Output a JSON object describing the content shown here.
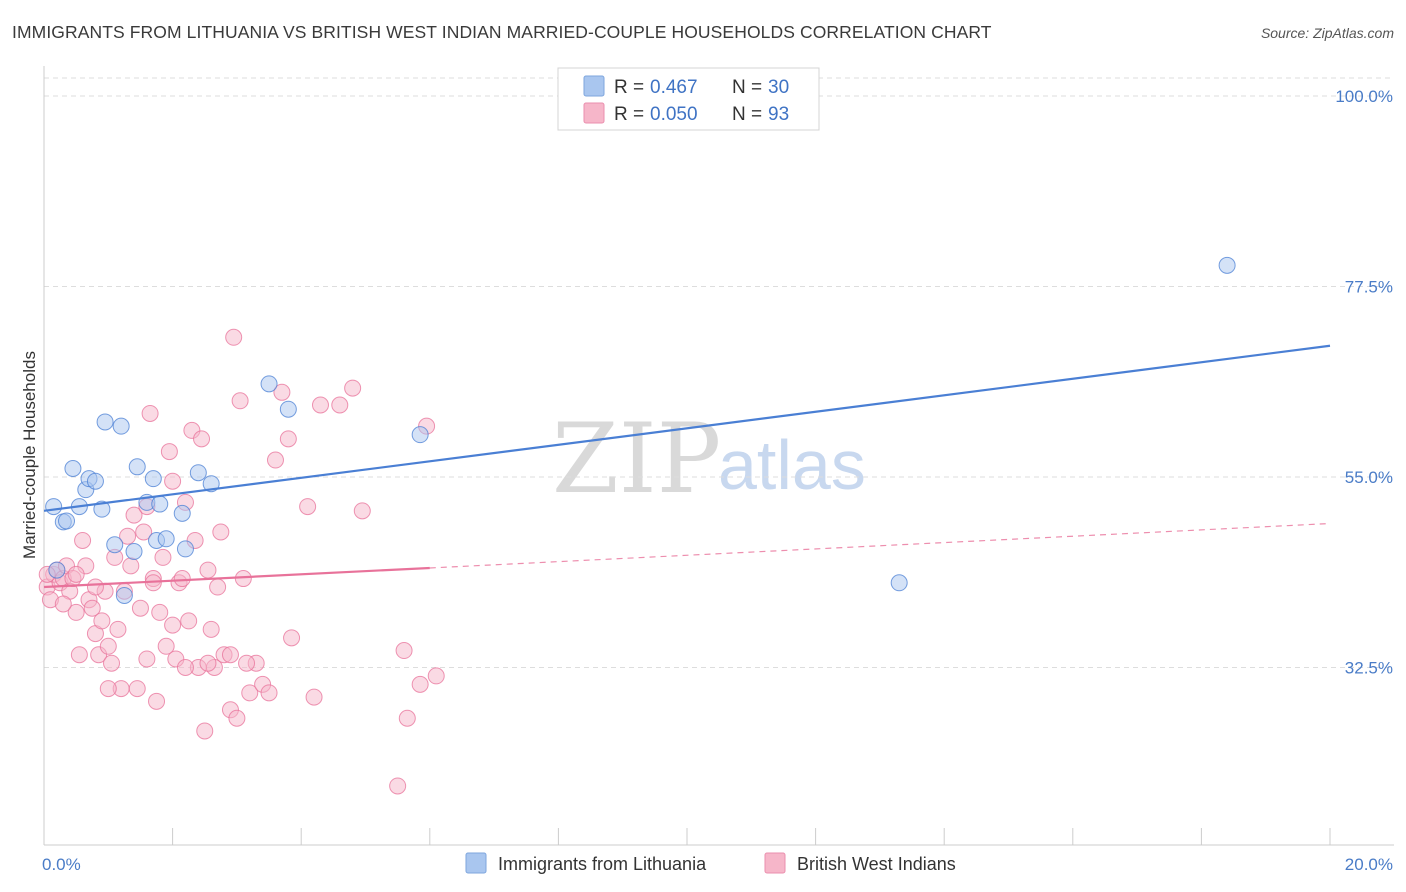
{
  "title": "IMMIGRANTS FROM LITHUANIA VS BRITISH WEST INDIAN MARRIED-COUPLE HOUSEHOLDS CORRELATION CHART",
  "source": "Source: ZipAtlas.com",
  "watermark": {
    "zip": "ZIP",
    "atlas": "atlas"
  },
  "colors": {
    "blue": "#4a7fd4",
    "blue_fill": "#a9c6ef",
    "pink": "#e8729a",
    "pink_fill": "#f6b6c9",
    "grid": "#dddddd",
    "tick_label": "#4a7cc7"
  },
  "legend": {
    "rows": [
      {
        "r_label": "R = ",
        "r_value": "0.467",
        "n_label": "N = ",
        "n_value": "30"
      },
      {
        "r_label": "R = ",
        "r_value": "0.050",
        "n_label": "N = ",
        "n_value": "93"
      }
    ]
  },
  "chart_data": {
    "type": "scatter",
    "title": "IMMIGRANTS FROM LITHUANIA VS BRITISH WEST INDIAN MARRIED-COUPLE HOUSEHOLDS CORRELATION CHART",
    "xlabel": "",
    "ylabel": "Married-couple Households",
    "xlim": [
      0,
      20
    ],
    "ylim": [
      12,
      102
    ],
    "x_tick_labels": {
      "left": "0.0%",
      "right": "20.0%"
    },
    "y_ticks": [
      {
        "value": 100,
        "label": "100.0%"
      },
      {
        "value": 77.5,
        "label": "77.5%"
      },
      {
        "value": 55,
        "label": "55.0%"
      },
      {
        "value": 32.5,
        "label": "32.5%"
      }
    ],
    "grid": true,
    "legend_position": "top-center",
    "series": [
      {
        "name": "Immigrants from Lithuania",
        "color": "blue",
        "trend": {
          "x0": 0.0,
          "y0": 51.0,
          "x1": 20.0,
          "y1": 70.5,
          "dashed_from": null
        },
        "points": [
          [
            0.15,
            51.5
          ],
          [
            0.3,
            49.7
          ],
          [
            0.35,
            49.8
          ],
          [
            0.45,
            56.0
          ],
          [
            0.55,
            51.5
          ],
          [
            0.65,
            53.5
          ],
          [
            0.7,
            54.8
          ],
          [
            0.8,
            54.5
          ],
          [
            0.9,
            51.2
          ],
          [
            0.95,
            61.5
          ],
          [
            1.1,
            47.0
          ],
          [
            1.2,
            61.0
          ],
          [
            1.4,
            46.2
          ],
          [
            1.45,
            56.2
          ],
          [
            1.6,
            52.0
          ],
          [
            1.7,
            54.8
          ],
          [
            1.75,
            47.5
          ],
          [
            1.8,
            51.8
          ],
          [
            1.9,
            47.7
          ],
          [
            2.15,
            50.7
          ],
          [
            2.2,
            46.5
          ],
          [
            2.4,
            55.5
          ],
          [
            2.6,
            54.2
          ],
          [
            3.5,
            66.0
          ],
          [
            3.8,
            63.0
          ],
          [
            5.85,
            60.0
          ],
          [
            18.4,
            80.0
          ],
          [
            13.3,
            42.5
          ],
          [
            1.25,
            41.0
          ],
          [
            0.2,
            44.0
          ]
        ]
      },
      {
        "name": "British West Indians",
        "color": "pink",
        "trend": {
          "x0": 0.0,
          "y0": 42.0,
          "x1": 20.0,
          "y1": 49.5,
          "dashed_from": 6.0
        },
        "points": [
          [
            0.05,
            42.0
          ],
          [
            0.1,
            40.5
          ],
          [
            0.15,
            43.5
          ],
          [
            0.2,
            44.0
          ],
          [
            0.25,
            42.5
          ],
          [
            0.3,
            43.0
          ],
          [
            0.35,
            44.5
          ],
          [
            0.4,
            41.5
          ],
          [
            0.45,
            43.0
          ],
          [
            0.5,
            39.0
          ],
          [
            0.55,
            34.0
          ],
          [
            0.6,
            47.5
          ],
          [
            0.65,
            44.5
          ],
          [
            0.7,
            40.5
          ],
          [
            0.75,
            39.5
          ],
          [
            0.8,
            36.5
          ],
          [
            0.85,
            34.0
          ],
          [
            0.9,
            38.0
          ],
          [
            0.95,
            41.5
          ],
          [
            1.0,
            35.0
          ],
          [
            1.05,
            33.0
          ],
          [
            1.1,
            45.5
          ],
          [
            1.15,
            37.0
          ],
          [
            1.2,
            30.0
          ],
          [
            1.25,
            41.5
          ],
          [
            1.3,
            48.0
          ],
          [
            1.35,
            44.5
          ],
          [
            1.4,
            50.5
          ],
          [
            1.45,
            30.0
          ],
          [
            1.5,
            39.5
          ],
          [
            1.55,
            48.5
          ],
          [
            1.6,
            51.5
          ],
          [
            1.65,
            62.5
          ],
          [
            1.7,
            43.0
          ],
          [
            1.75,
            28.5
          ],
          [
            1.8,
            39.0
          ],
          [
            1.85,
            45.5
          ],
          [
            1.9,
            35.0
          ],
          [
            1.95,
            58.0
          ],
          [
            2.0,
            54.5
          ],
          [
            2.05,
            33.5
          ],
          [
            2.1,
            42.5
          ],
          [
            2.15,
            43.0
          ],
          [
            2.2,
            52.0
          ],
          [
            2.25,
            38.0
          ],
          [
            2.3,
            60.5
          ],
          [
            2.35,
            47.5
          ],
          [
            2.4,
            32.5
          ],
          [
            2.45,
            59.5
          ],
          [
            2.5,
            25.0
          ],
          [
            2.55,
            44.0
          ],
          [
            2.6,
            37.0
          ],
          [
            2.65,
            32.5
          ],
          [
            2.7,
            42.0
          ],
          [
            2.75,
            48.5
          ],
          [
            2.8,
            34.0
          ],
          [
            2.9,
            27.5
          ],
          [
            2.95,
            71.5
          ],
          [
            3.0,
            26.5
          ],
          [
            3.05,
            64.0
          ],
          [
            3.1,
            43.0
          ],
          [
            3.2,
            29.5
          ],
          [
            3.3,
            33.0
          ],
          [
            3.4,
            30.5
          ],
          [
            3.5,
            29.5
          ],
          [
            3.6,
            57.0
          ],
          [
            3.7,
            65.0
          ],
          [
            3.8,
            59.5
          ],
          [
            3.85,
            36.0
          ],
          [
            4.1,
            51.5
          ],
          [
            4.2,
            29.0
          ],
          [
            4.3,
            63.5
          ],
          [
            4.6,
            63.5
          ],
          [
            4.8,
            65.5
          ],
          [
            4.95,
            51.0
          ],
          [
            5.5,
            18.5
          ],
          [
            5.6,
            34.5
          ],
          [
            5.65,
            26.5
          ],
          [
            5.85,
            30.5
          ],
          [
            5.95,
            61.0
          ],
          [
            6.1,
            31.5
          ],
          [
            0.8,
            42.0
          ],
          [
            1.0,
            30.0
          ],
          [
            1.6,
            33.5
          ],
          [
            2.0,
            37.5
          ],
          [
            2.2,
            32.5
          ],
          [
            2.9,
            34.0
          ],
          [
            3.15,
            33.0
          ],
          [
            0.3,
            40.0
          ],
          [
            0.5,
            43.5
          ],
          [
            1.7,
            42.5
          ],
          [
            2.55,
            33.0
          ],
          [
            0.05,
            43.5
          ]
        ]
      }
    ]
  }
}
